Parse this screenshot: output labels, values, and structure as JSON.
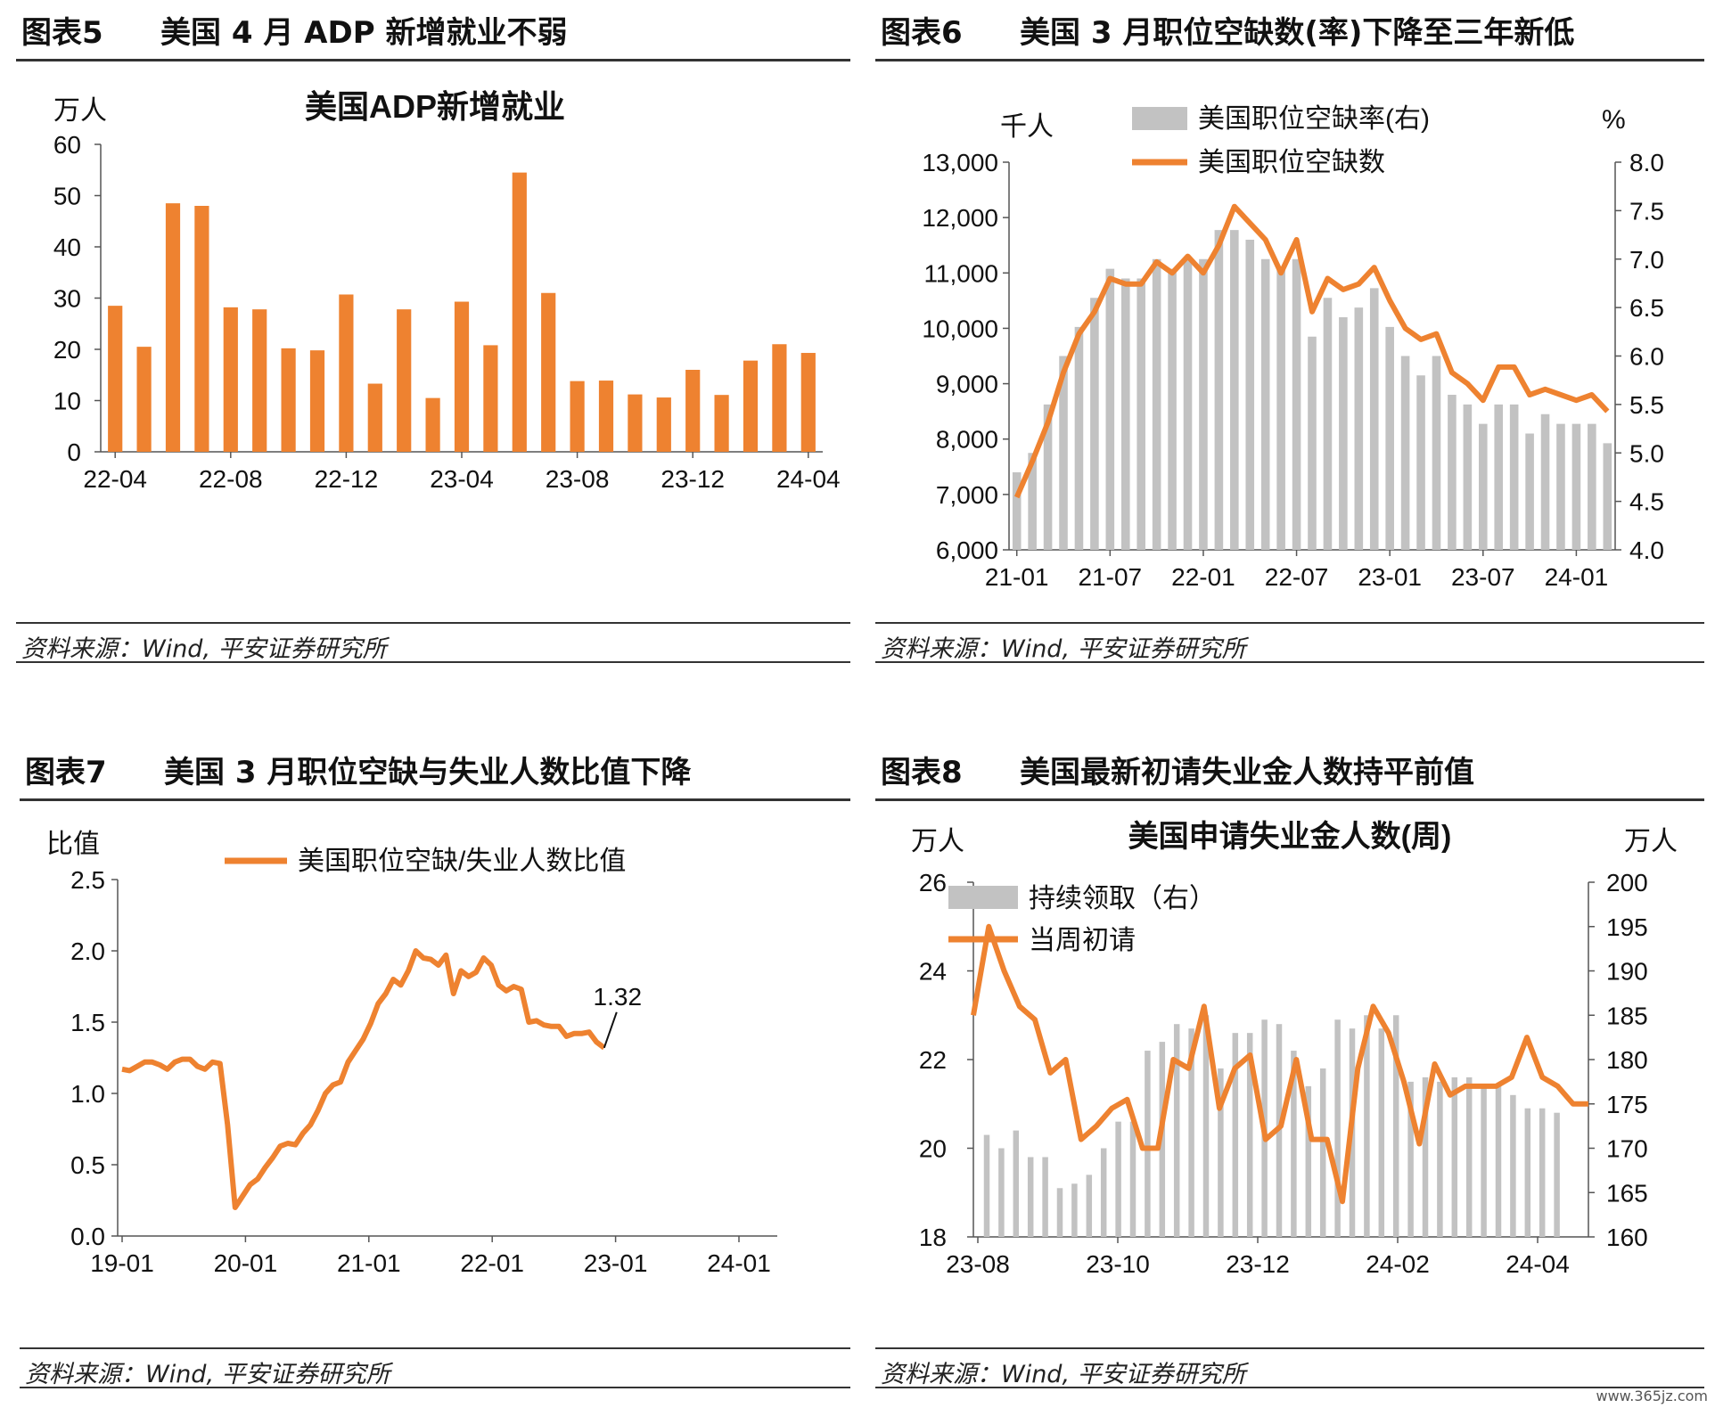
{
  "source_text": "资料来源：Wind, 平安证券研究所",
  "watermark": "www.365jz.com",
  "colors": {
    "orange": "#ee8230",
    "gray": "#c2c2c2",
    "axis": "#555555"
  },
  "panels": [
    {
      "num": "图表5",
      "title": "美国 4 月 ADP 新增就业不弱"
    },
    {
      "num": "图表6",
      "title": "美国 3 月职位空缺数(率)下降至三年新低"
    },
    {
      "num": "图表7",
      "title": "美国 3 月职位空缺与失业人数比值下降"
    },
    {
      "num": "图表8",
      "title": "美国最新初请失业金人数持平前值"
    }
  ],
  "chart_data": [
    {
      "type": "bar",
      "title": "美国ADP新增就业",
      "ylabel": "万人",
      "ylim": [
        0,
        60
      ],
      "yticks": [
        0,
        10,
        20,
        30,
        40,
        50,
        60
      ],
      "x_tick_labels": [
        "22-04",
        "22-08",
        "22-12",
        "23-04",
        "23-08",
        "23-12",
        "24-04"
      ],
      "categories": [
        "22-04",
        "22-05",
        "22-06",
        "22-07",
        "22-08",
        "22-09",
        "22-10",
        "22-11",
        "22-12",
        "23-01",
        "23-02",
        "23-03",
        "23-04",
        "23-05",
        "23-06",
        "23-07",
        "23-08",
        "23-09",
        "23-10",
        "23-11",
        "23-12",
        "24-01",
        "24-02",
        "24-03",
        "24-04"
      ],
      "values": [
        28.5,
        20.5,
        48.5,
        48,
        28.2,
        27.8,
        20.2,
        19.8,
        30.7,
        13.3,
        27.8,
        10.5,
        29.3,
        20.8,
        54.5,
        31,
        13.8,
        13.9,
        11.2,
        10.6,
        16,
        11.1,
        17.8,
        21,
        19.3
      ]
    },
    {
      "type": "bar+line",
      "ylabel_left": "千人",
      "ylabel_right": "%",
      "ylim_left": [
        6000,
        13000
      ],
      "ylim_right": [
        4.0,
        8.0
      ],
      "yticks_left": [
        "6,000",
        "7,000",
        "8,000",
        "9,000",
        "10,000",
        "11,000",
        "12,000",
        "13,000"
      ],
      "yticks_right": [
        "4.0",
        "4.5",
        "5.0",
        "5.5",
        "6.0",
        "6.5",
        "7.0",
        "7.5",
        "8.0"
      ],
      "x_tick_labels": [
        "21-01",
        "21-07",
        "22-01",
        "22-07",
        "23-01",
        "23-07",
        "24-01"
      ],
      "series": [
        {
          "name": "美国职位空缺率(右)",
          "kind": "bar",
          "axis": "right",
          "values": [
            4.8,
            5.0,
            5.5,
            6.0,
            6.3,
            6.6,
            6.9,
            6.8,
            6.8,
            7.0,
            6.9,
            7.0,
            7.0,
            7.3,
            7.3,
            7.2,
            7.0,
            6.9,
            7.0,
            6.2,
            6.6,
            6.4,
            6.5,
            6.7,
            6.3,
            6.0,
            5.8,
            6.0,
            5.6,
            5.5,
            5.3,
            5.5,
            5.5,
            5.2,
            5.4,
            5.3,
            5.3,
            5.3,
            5.1
          ]
        },
        {
          "name": "美国职位空缺数",
          "kind": "line",
          "axis": "left",
          "values": [
            6950,
            7600,
            8300,
            9200,
            9900,
            10300,
            10900,
            10800,
            10800,
            11200,
            11000,
            11300,
            11000,
            11500,
            12200,
            11900,
            11600,
            11000,
            11600,
            10300,
            10900,
            10700,
            10800,
            11100,
            10500,
            10000,
            9800,
            9900,
            9200,
            9000,
            8700,
            9300,
            9300,
            8800,
            8900,
            8800,
            8700,
            8800,
            8500
          ]
        }
      ]
    },
    {
      "type": "line",
      "ylabel": "比值",
      "ylim": [
        0.0,
        2.5
      ],
      "yticks": [
        "0.0",
        "0.5",
        "1.0",
        "1.5",
        "2.0",
        "2.5"
      ],
      "x_tick_labels": [
        "19-01",
        "20-01",
        "21-01",
        "22-01",
        "23-01",
        "24-01"
      ],
      "annotation": "1.32",
      "series": [
        {
          "name": "美国职位空缺/失业人数比值",
          "values": [
            1.17,
            1.16,
            1.19,
            1.22,
            1.22,
            1.2,
            1.17,
            1.22,
            1.24,
            1.24,
            1.19,
            1.17,
            1.22,
            1.21,
            0.78,
            0.2,
            0.28,
            0.36,
            0.4,
            0.48,
            0.55,
            0.63,
            0.65,
            0.64,
            0.72,
            0.78,
            0.88,
            1.0,
            1.06,
            1.08,
            1.22,
            1.3,
            1.38,
            1.49,
            1.63,
            1.7,
            1.8,
            1.76,
            1.86,
            2.0,
            1.95,
            1.94,
            1.9,
            1.97,
            1.7,
            1.86,
            1.82,
            1.85,
            1.95,
            1.9,
            1.76,
            1.72,
            1.75,
            1.73,
            1.5,
            1.51,
            1.48,
            1.47,
            1.47,
            1.4,
            1.42,
            1.42,
            1.43,
            1.36,
            1.32
          ]
        }
      ]
    },
    {
      "type": "bar+line",
      "title": "美国申请失业金人数(周)",
      "ylabel_left": "万人",
      "ylabel_right": "万人",
      "ylim_left": [
        18,
        26
      ],
      "ylim_right": [
        160,
        200
      ],
      "yticks_left": [
        "18",
        "20",
        "22",
        "24",
        "26"
      ],
      "yticks_right": [
        "160",
        "165",
        "170",
        "175",
        "180",
        "185",
        "190",
        "195",
        "200"
      ],
      "x_tick_labels": [
        "23-08",
        "23-10",
        "23-12",
        "24-02",
        "24-04"
      ],
      "series": [
        {
          "name": "持续领取（右）",
          "kind": "bar",
          "axis": "right",
          "values": [
            171.5,
            170,
            172,
            169,
            169,
            165.5,
            166,
            167,
            170,
            173,
            173,
            181,
            182,
            184,
            183.5,
            185,
            179,
            183,
            183,
            184.5,
            184,
            181,
            177,
            179,
            184.5,
            183.5,
            185,
            183.5,
            185,
            177.5,
            178,
            177.5,
            178,
            178,
            177,
            177,
            176,
            174.5,
            174.5,
            174
          ]
        },
        {
          "name": "当周初请",
          "kind": "line",
          "axis": "left",
          "values": [
            23.0,
            25.0,
            24.0,
            23.2,
            22.9,
            21.7,
            22.0,
            20.2,
            20.5,
            20.9,
            21.1,
            20.0,
            20.0,
            22.0,
            21.8,
            23.2,
            20.9,
            21.8,
            22.1,
            20.2,
            20.5,
            22.0,
            20.2,
            20.2,
            18.8,
            21.8,
            23.2,
            22.6,
            21.5,
            20.1,
            21.9,
            21.2,
            21.4,
            21.4,
            21.4,
            21.6,
            22.5,
            21.6,
            21.4,
            21.0,
            21.0
          ]
        }
      ]
    }
  ]
}
